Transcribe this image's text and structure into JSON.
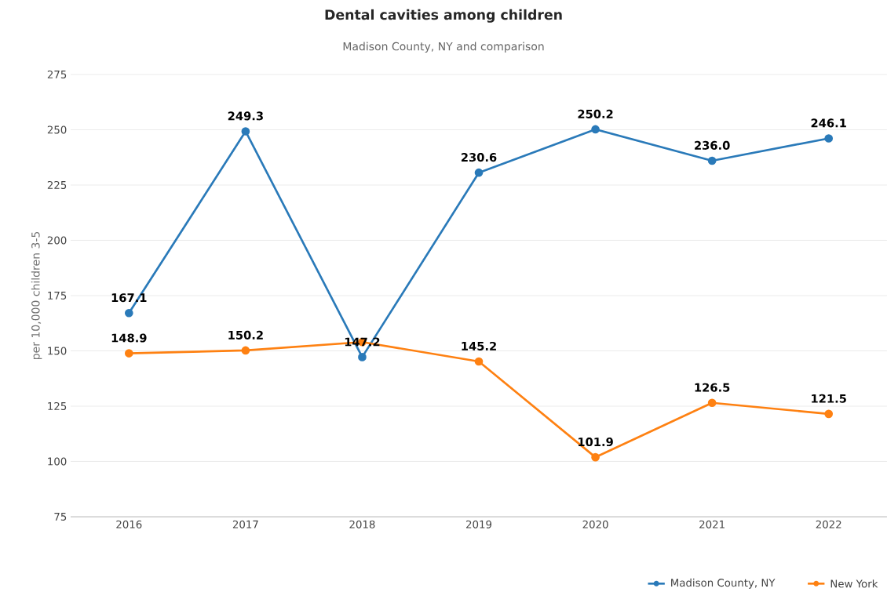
{
  "chart_data": {
    "type": "line",
    "title": "Dental cavities among children",
    "subtitle": "Madison County, NY and comparison",
    "ylabel": "per 10,000 children 3-5",
    "categories": [
      "2016",
      "2017",
      "2018",
      "2019",
      "2020",
      "2021",
      "2022"
    ],
    "series": [
      {
        "name": "Madison County, NY",
        "color": "#2a7ab9",
        "values": [
          167.1,
          249.3,
          147.2,
          230.6,
          250.2,
          236.0,
          246.1
        ],
        "value_labels": [
          "167.1",
          "249.3",
          "147.2",
          "230.6",
          "250.2",
          "236.0",
          "246.1"
        ]
      },
      {
        "name": "New York",
        "color": "#fe8112",
        "values": [
          148.9,
          150.2,
          154,
          145.2,
          101.9,
          126.5,
          121.5
        ],
        "value_labels": [
          "148.9",
          "150.2",
          null,
          "145.2",
          "101.9",
          "126.5",
          "121.5"
        ]
      }
    ],
    "ylim": [
      75,
      275
    ],
    "yticks": [
      75,
      100,
      125,
      150,
      175,
      200,
      225,
      250,
      275
    ],
    "grid": "y",
    "legend": "bottom right",
    "marker": "circle",
    "line_style": "solid"
  }
}
